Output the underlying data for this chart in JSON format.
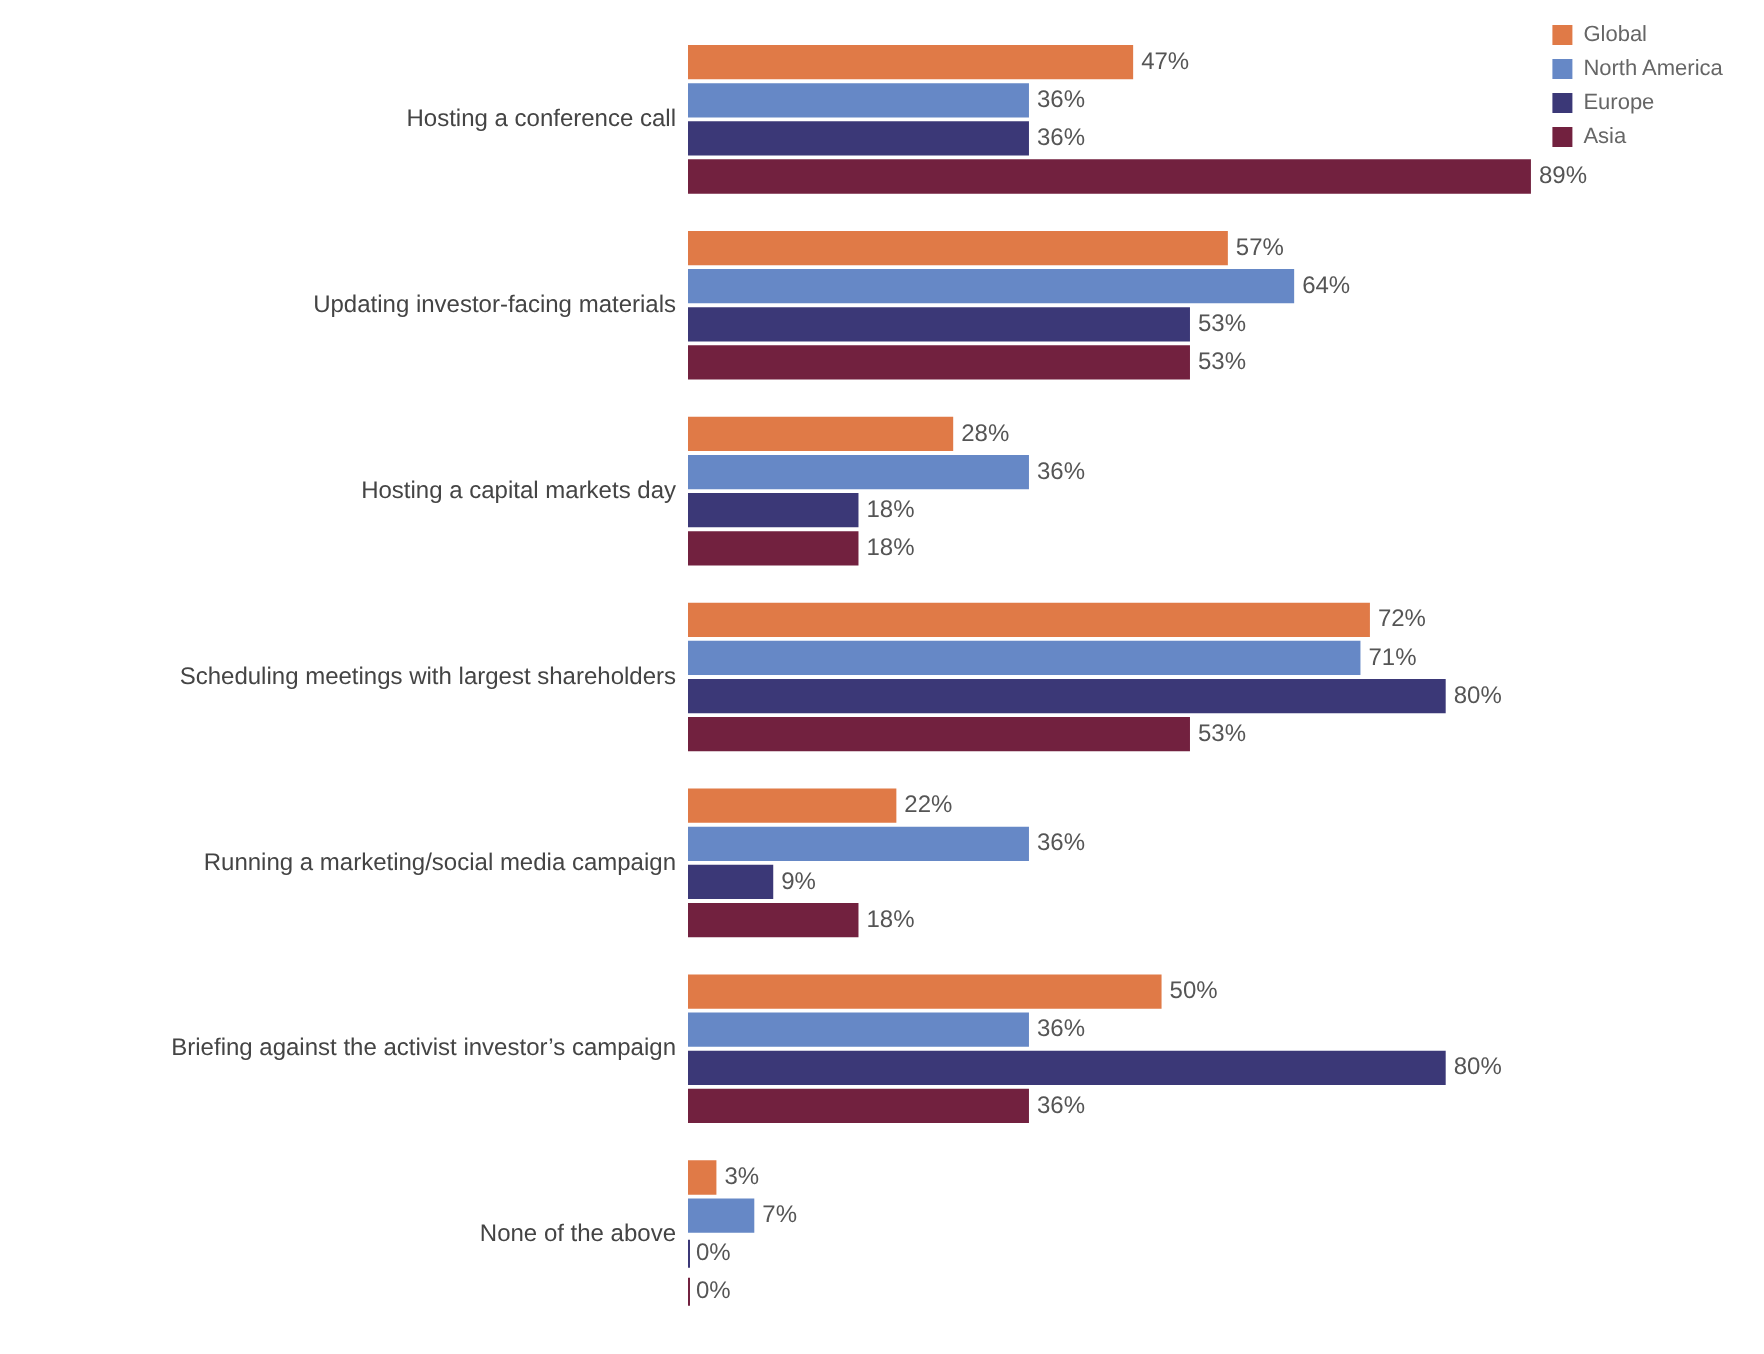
{
  "chart_data": {
    "type": "bar",
    "orientation": "horizontal",
    "tick_labels": "y",
    "legend": "top right",
    "categories": [
      "Hosting a conference call",
      "Updating investor-facing materials",
      "Hosting a capital markets day",
      "Scheduling meetings with largest shareholders",
      "Running a marketing/social media campaign",
      "Briefing against the activist investor’s campaign",
      "None of the above"
    ],
    "series": [
      {
        "name": "Global",
        "color": "#e07a47",
        "values": [
          47,
          57,
          28,
          72,
          22,
          50,
          3
        ],
        "value_labels": [
          "47%",
          "57%",
          "28%",
          "72%",
          "22%",
          "50%",
          "3%"
        ]
      },
      {
        "name": "North America",
        "color": "#6688c6",
        "values": [
          36,
          64,
          36,
          71,
          36,
          36,
          7
        ],
        "value_labels": [
          "36%",
          "64%",
          "36%",
          "71%",
          "36%",
          "36%",
          "7%"
        ]
      },
      {
        "name": "Europe",
        "color": "#3b3877",
        "values": [
          36,
          53,
          18,
          80,
          9,
          80,
          0
        ],
        "value_labels": [
          "36%",
          "53%",
          "18%",
          "80%",
          "9%",
          "80%",
          "0%"
        ]
      },
      {
        "name": "Asia",
        "color": "#72213f",
        "values": [
          89,
          53,
          18,
          53,
          18,
          36,
          0
        ],
        "value_labels": [
          "89%",
          "53%",
          "18%",
          "53%",
          "18%",
          "36%",
          "0%"
        ]
      }
    ]
  }
}
